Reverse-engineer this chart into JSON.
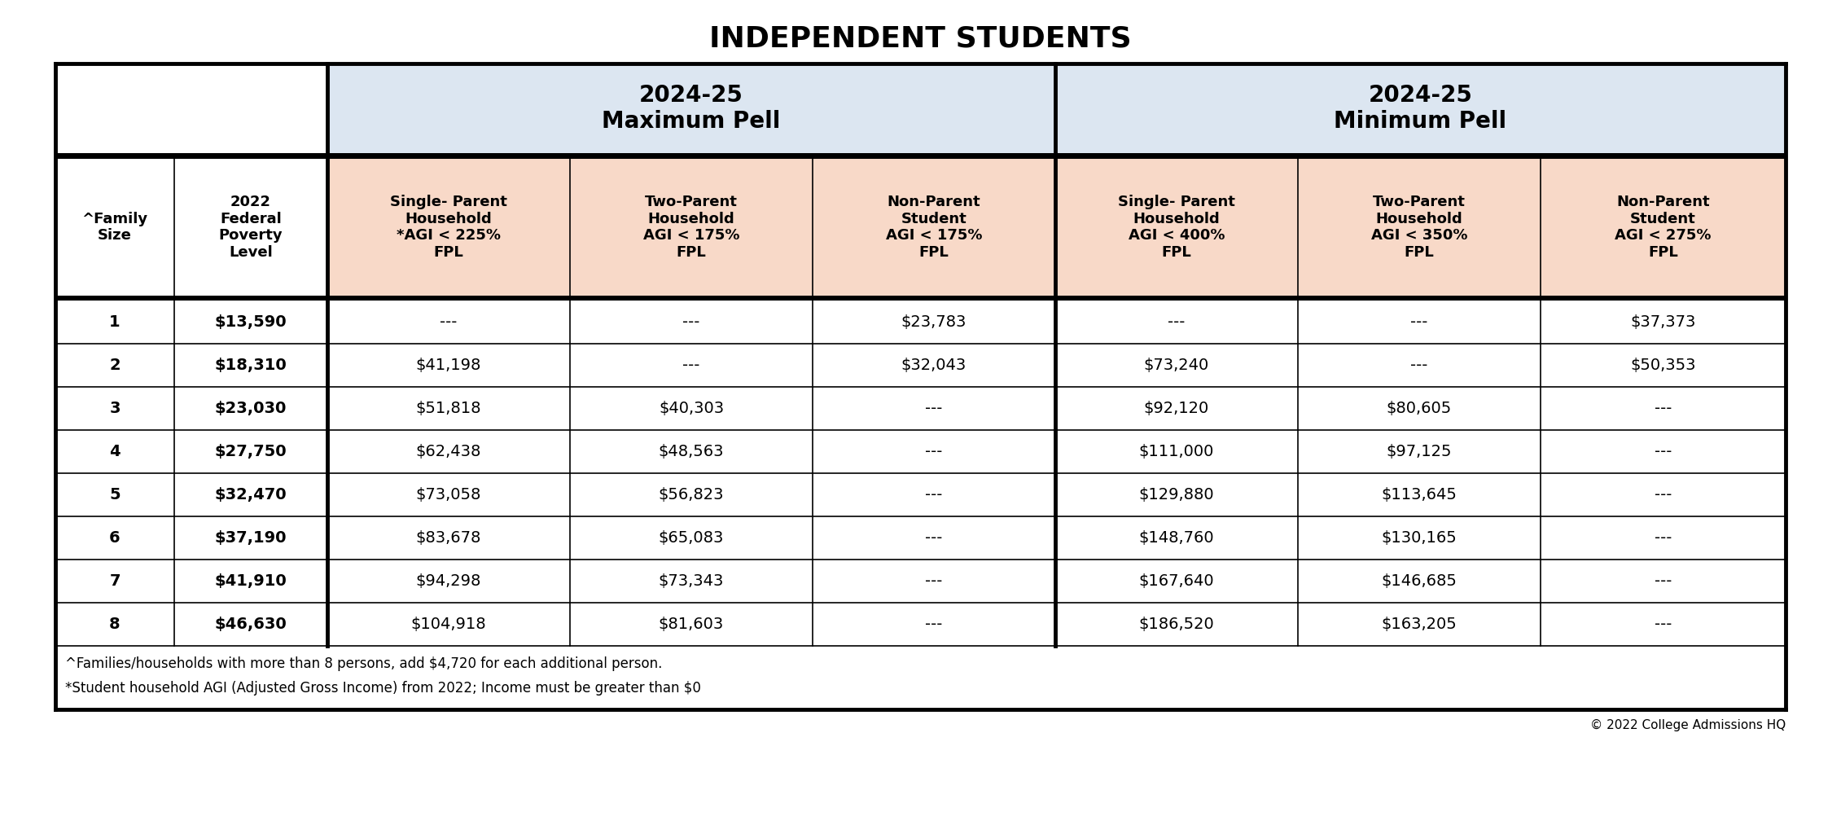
{
  "title": "INDEPENDENT STUDENTS",
  "header_group1": "2024-25\nMaximum Pell",
  "header_group2": "2024-25\nMinimum Pell",
  "col_headers": [
    "^Family\nSize",
    "2022\nFederal\nPoverty\nLevel",
    "Single- Parent\nHousehold\n*AGI < 225%\nFPL",
    "Two-Parent\nHousehold\nAGI < 175%\nFPL",
    "Non-Parent\nStudent\nAGI < 175%\nFPL",
    "Single- Parent\nHousehold\nAGI < 400%\nFPL",
    "Two-Parent\nHousehold\nAGI < 350%\nFPL",
    "Non-Parent\nStudent\nAGI < 275%\nFPL"
  ],
  "rows": [
    [
      "1",
      "$13,590",
      "---",
      "---",
      "$23,783",
      "---",
      "---",
      "$37,373"
    ],
    [
      "2",
      "$18,310",
      "$41,198",
      "---",
      "$32,043",
      "$73,240",
      "---",
      "$50,353"
    ],
    [
      "3",
      "$23,030",
      "$51,818",
      "$40,303",
      "---",
      "$92,120",
      "$80,605",
      "---"
    ],
    [
      "4",
      "$27,750",
      "$62,438",
      "$48,563",
      "---",
      "$111,000",
      "$97,125",
      "---"
    ],
    [
      "5",
      "$32,470",
      "$73,058",
      "$56,823",
      "---",
      "$129,880",
      "$113,645",
      "---"
    ],
    [
      "6",
      "$37,190",
      "$83,678",
      "$65,083",
      "---",
      "$148,760",
      "$130,165",
      "---"
    ],
    [
      "7",
      "$41,910",
      "$94,298",
      "$73,343",
      "---",
      "$167,640",
      "$146,685",
      "---"
    ],
    [
      "8",
      "$46,630",
      "$104,918",
      "$81,603",
      "---",
      "$186,520",
      "$163,205",
      "---"
    ]
  ],
  "footnote1": "^Families/households with more than 8 persons, add $4,720 for each additional person.",
  "footnote2": "*Student household AGI (Adjusted Gross Income) from 2022; Income must be greater than $0",
  "copyright": "© 2022 College Admissions HQ",
  "bg_color": "#ffffff",
  "header_group_bg": "#dce6f1",
  "col_header_bg": "#f8d9c8",
  "border_color": "#000000"
}
